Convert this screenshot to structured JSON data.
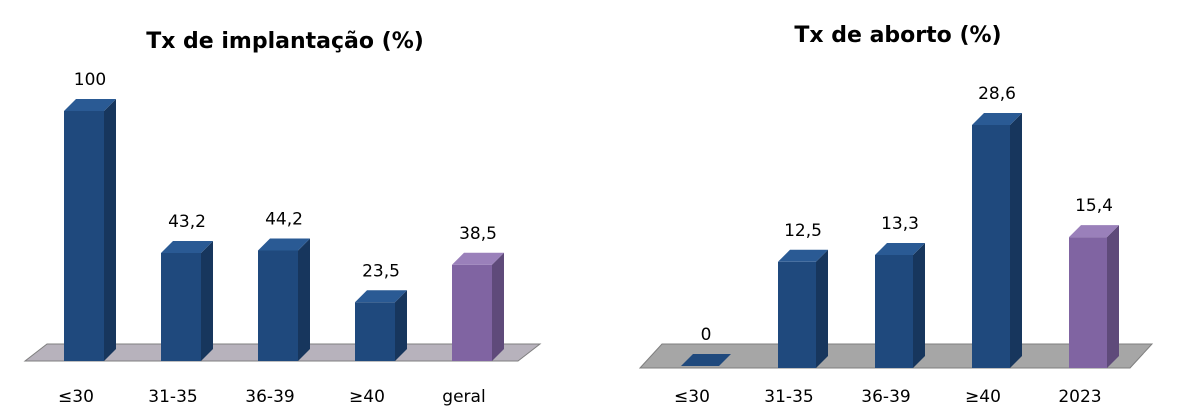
{
  "colors": {
    "bar_front": "#1F497D",
    "bar_side": "#17365D",
    "bar_top": "#2A5A94",
    "highlight_front": "#8064A2",
    "highlight_side": "#5F4A7A",
    "highlight_top": "#9A80BA",
    "floor_left": "#B7B2BC",
    "floor_right": "#A6A6A6"
  },
  "chart_data": [
    {
      "type": "bar",
      "title": "Tx de implantação (%)",
      "categories": [
        "≤30",
        "31-35",
        "36-39",
        "≥40",
        "geral"
      ],
      "values": [
        100,
        43.2,
        44.2,
        23.5,
        38.5
      ],
      "value_labels": [
        "100",
        "43,2",
        "44,2",
        "23,5",
        "38,5"
      ],
      "highlight_index": 4,
      "ylim": [
        0,
        100
      ]
    },
    {
      "type": "bar",
      "title": "Tx de aborto (%)",
      "categories": [
        "≤30",
        "31-35",
        "36-39",
        "≥40",
        "2023"
      ],
      "values": [
        0,
        12.5,
        13.3,
        28.6,
        15.4
      ],
      "value_labels": [
        "0",
        "12,5",
        "13,3",
        "28,6",
        "15,4"
      ],
      "highlight_index": 4,
      "ylim": [
        0,
        28.6
      ]
    }
  ]
}
